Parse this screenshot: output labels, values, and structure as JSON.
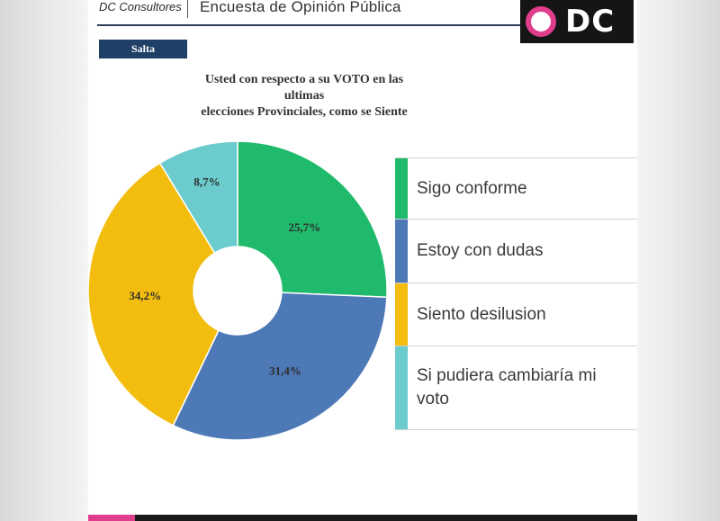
{
  "header": {
    "company": "DC Consultores",
    "survey_title": "Encuesta de Opinión Pública",
    "logo_text": "DC"
  },
  "region_tag": "Salta",
  "chart_data": {
    "type": "pie",
    "title_lines": [
      "Usted con respecto a su VOTO en las ultimas",
      "elecciones Provinciales, como se Siente"
    ],
    "categories": [
      "Sigo conforme",
      "Estoy con dudas",
      "Siento desilusion",
      "Si pudiera cambiaría mi voto"
    ],
    "values": [
      25.7,
      31.4,
      34.2,
      8.7
    ],
    "value_labels": [
      "25,7%",
      "31,4%",
      "34,2%",
      "8,7%"
    ],
    "colors": [
      "#1fba6b",
      "#4e79b7",
      "#f2bd0f",
      "#6ccbcc"
    ],
    "donut": true,
    "legend_position": "right"
  },
  "legend": {
    "items": [
      {
        "label": "Sigo conforme"
      },
      {
        "label": "Estoy con dudas"
      },
      {
        "label": "Siento desilusion"
      },
      {
        "label": "Si pudiera cambiaría mi voto"
      }
    ]
  }
}
